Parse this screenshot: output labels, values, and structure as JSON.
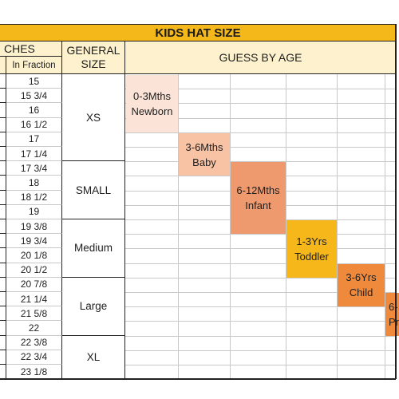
{
  "colors": {
    "title_bg": "#f5b81a",
    "header_bg": "#fdf2cd",
    "grid_line": "#c9c9c9",
    "border": "#222222"
  },
  "title": "KIDS HAT SIZE",
  "headers": {
    "inches": "CHES",
    "in_fraction": "In Fraction",
    "general_size_line1": "GENERAL",
    "general_size_line2": "SIZE",
    "guess_by_age": "GUESS BY AGE"
  },
  "fractions": [
    "15",
    "15 3/4",
    "16",
    "16 1/2",
    "17",
    "17 1/4",
    "17 3/4",
    "18",
    "18 1/2",
    "19",
    "19 3/8",
    "19 3/4",
    "20 1/8",
    "20 1/2",
    "20 7/8",
    "21 1/4",
    "21 5/8",
    "22",
    "22 3/8",
    "22 3/4",
    "23 1/8"
  ],
  "sizes": [
    "XS",
    "SMALL",
    "Medium",
    "Large",
    "XL"
  ],
  "ages": [
    {
      "line1": "0-3Mths",
      "line2": "Newborn",
      "color": "#fce3d7"
    },
    {
      "line1": "3-6Mths",
      "line2": "Baby",
      "color": "#f8c2a4"
    },
    {
      "line1": "6-12Mths",
      "line2": "Infant",
      "color": "#ef9a6e"
    },
    {
      "line1": "1-3Yrs",
      "line2": "Toddler",
      "color": "#f6b71a"
    },
    {
      "line1": "3-6Yrs",
      "line2": "Child",
      "color": "#ef8a3c"
    },
    {
      "line1": "6-",
      "line2": "Pr",
      "color": "#ef8a3c"
    }
  ]
}
